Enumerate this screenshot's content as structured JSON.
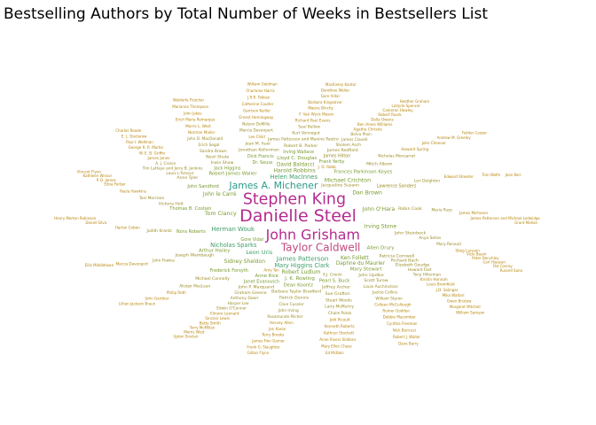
{
  "chart_data": {
    "type": "wordcloud",
    "title": "Bestselling Authors by Total Number of Weeks in Bestsellers List",
    "color_scale": [
      "#b8860b",
      "#9a8a22",
      "#7a9a2e",
      "#3e9e6a",
      "#2a9a8a",
      "#c04a7e",
      "#b52b8f"
    ],
    "words": [
      {
        "text": "Danielle Steel",
        "weight": 100
      },
      {
        "text": "Stephen King",
        "weight": 96
      },
      {
        "text": "John Grisham",
        "weight": 92
      },
      {
        "text": "Taylor Caldwell",
        "weight": 80
      },
      {
        "text": "James A. Michener",
        "weight": 76
      },
      {
        "text": "James Patterson",
        "weight": 60
      },
      {
        "text": "Herman Wouk",
        "weight": 58
      },
      {
        "text": "Helen MacInnes",
        "weight": 57
      },
      {
        "text": "Mary Higgins Clark",
        "weight": 56
      },
      {
        "text": "Nicholas Sparks",
        "weight": 56
      },
      {
        "text": "Leon Uris",
        "weight": 55
      },
      {
        "text": "Harold Robbins",
        "weight": 54
      },
      {
        "text": "Michael Crichton",
        "weight": 54
      },
      {
        "text": "Tom Clancy",
        "weight": 54
      },
      {
        "text": "Dan Brown",
        "weight": 53
      },
      {
        "text": "John O'Hara",
        "weight": 53
      },
      {
        "text": "Irving Stone",
        "weight": 52
      },
      {
        "text": "Ken Follett",
        "weight": 52
      },
      {
        "text": "Robert Ludlum",
        "weight": 52
      },
      {
        "text": "Sidney Sheldon",
        "weight": 52
      },
      {
        "text": "John le Carré",
        "weight": 51
      },
      {
        "text": "David Baldacci",
        "weight": 50
      },
      {
        "text": "Daphne du Maurier",
        "weight": 50
      },
      {
        "text": "Allen Drury",
        "weight": 48
      },
      {
        "text": "J. K. Rowling",
        "weight": 48
      },
      {
        "text": "Arthur Hailey",
        "weight": 47
      },
      {
        "text": "Robert James Waller",
        "weight": 47
      },
      {
        "text": "Lloyd C. Douglas",
        "weight": 47
      },
      {
        "text": "Frances Parkinson Keyes",
        "weight": 47
      },
      {
        "text": "Mary Stewart",
        "weight": 47
      },
      {
        "text": "Pearl S. Buck",
        "weight": 46
      },
      {
        "text": "Dean Koontz",
        "weight": 46
      },
      {
        "text": "Anne Rice",
        "weight": 46
      },
      {
        "text": "Janet Evanovich",
        "weight": 44
      },
      {
        "text": "Frederick Forsyth",
        "weight": 44
      },
      {
        "text": "Nora Roberts",
        "weight": 44
      },
      {
        "text": "Thomas B. Costain",
        "weight": 44
      },
      {
        "text": "John Sandford",
        "weight": 44
      },
      {
        "text": "Jack Higgins",
        "weight": 43
      },
      {
        "text": "Dick Francis",
        "weight": 43
      },
      {
        "text": "Frank Yerby",
        "weight": 43
      },
      {
        "text": "Gore Vidal",
        "weight": 43
      },
      {
        "text": "Irving Wallace",
        "weight": 43
      },
      {
        "text": "Dr. Seuss",
        "weight": 43
      },
      {
        "text": "Lawrence Sanders",
        "weight": 42
      },
      {
        "text": "James Hilton",
        "weight": 42
      },
      {
        "text": "Robin Cook",
        "weight": 41
      },
      {
        "text": "John Steinbeck",
        "weight": 41
      },
      {
        "text": "Patricia Cornwell",
        "weight": 41
      },
      {
        "text": "John Updike",
        "weight": 41
      },
      {
        "text": "Barbara Taylor Bradford",
        "weight": 40
      },
      {
        "text": "Jacqueline Susann",
        "weight": 40
      },
      {
        "text": "Jeffrey Archer",
        "weight": 40
      },
      {
        "text": "John P. Marquand",
        "weight": 40
      },
      {
        "text": "Joseph Wambaugh",
        "weight": 40
      },
      {
        "text": "Irwin Shaw",
        "weight": 40
      },
      {
        "text": "Jonathan Kellerman",
        "weight": 40
      },
      {
        "text": "Robert B. Parker",
        "weight": 40
      },
      {
        "text": "James Redfield",
        "weight": 40
      },
      {
        "text": "Mitch Albom",
        "weight": 40
      },
      {
        "text": "Richard Bach",
        "weight": 40
      },
      {
        "text": "Scott Turow",
        "weight": 40
      },
      {
        "text": "Sue Grafton",
        "weight": 40
      },
      {
        "text": "Patrick Dennis",
        "weight": 39
      },
      {
        "text": "Graham Greene",
        "weight": 38
      },
      {
        "text": "Michael Connelly",
        "weight": 38
      },
      {
        "text": "Victoria Holt",
        "weight": 38
      },
      {
        "text": "Anne Tyler",
        "weight": 38
      },
      {
        "text": "Nevil Shute",
        "weight": 38
      },
      {
        "text": "Jean M. Auel",
        "weight": 38
      },
      {
        "text": "James Patterson and Maxine Paetro",
        "weight": 37
      },
      {
        "text": "Sholem Asch",
        "weight": 36
      },
      {
        "text": "Anya Seton",
        "weight": 36
      },
      {
        "text": "Elizabeth Goudge",
        "weight": 36
      },
      {
        "text": "Louis Auchincloss",
        "weight": 36
      },
      {
        "text": "Stuart Woods",
        "weight": 36
      },
      {
        "text": "Clive Cussler",
        "weight": 36
      },
      {
        "text": "Anthony Doerr",
        "weight": 36
      },
      {
        "text": "Judith Krantz",
        "weight": 36
      },
      {
        "text": "Louis L'Amour",
        "weight": 36
      },
      {
        "text": "Sandra Brown",
        "weight": 35
      },
      {
        "text": "Kurt Vonnegut",
        "weight": 35
      },
      {
        "text": "Nicholas Monsarrat",
        "weight": 35
      },
      {
        "text": "James Clavell",
        "weight": 35
      },
      {
        "text": "Len Deighton",
        "weight": 35
      },
      {
        "text": "Mario Puzo",
        "weight": 34
      },
      {
        "text": "Howard Fast",
        "weight": 34
      },
      {
        "text": "Alistair MacLean",
        "weight": 33
      },
      {
        "text": "Jackie Collins",
        "weight": 34
      },
      {
        "text": "Larry McMurtry",
        "weight": 34
      },
      {
        "text": "John Irving",
        "weight": 34
      },
      {
        "text": "Harper Lee",
        "weight": 34
      },
      {
        "text": "John Fowles",
        "weight": 33
      },
      {
        "text": "Toni Morrison",
        "weight": 33
      },
      {
        "text": "Tim LaHaye and Jerry B. Jenkins",
        "weight": 33
      },
      {
        "text": "Erich Segal",
        "weight": 33
      },
      {
        "text": "Marcia Davenport",
        "weight": 33
      },
      {
        "text": "Saul Bellow",
        "weight": 33
      },
      {
        "text": "Belva Plain",
        "weight": 33
      },
      {
        "text": "Mary Renault",
        "weight": 32
      },
      {
        "text": "Tony Hillerman",
        "weight": 32
      },
      {
        "text": "William Styron",
        "weight": 32
      },
      {
        "text": "Chaim Potok",
        "weight": 32
      },
      {
        "text": "Rosamunde Pilcher",
        "weight": 32
      },
      {
        "text": "Richard Paul Evans",
        "weight": 31
      },
      {
        "text": "Agatha Christie",
        "weight": 31
      },
      {
        "text": "Edwin O'Connor",
        "weight": 32
      },
      {
        "text": "A. J. Cronin",
        "weight": 32
      },
      {
        "text": "A.J. Cronin",
        "weight": 32
      },
      {
        "text": "John D. MacDonald",
        "weight": 32
      },
      {
        "text": "Nelson DeMille",
        "weight": 32
      },
      {
        "text": "Howard Spring",
        "weight": 31
      },
      {
        "text": "Kristin Hannah",
        "weight": 31
      },
      {
        "text": "Colleen McCullough",
        "weight": 31
      },
      {
        "text": "Jodi Picoult",
        "weight": 31
      },
      {
        "text": "Hervey Allen",
        "weight": 31
      },
      {
        "text": "Elmore Leonard",
        "weight": 30
      },
      {
        "text": "Philip Roth",
        "weight": 30
      },
      {
        "text": "Harlan Coben",
        "weight": 30
      },
      {
        "text": "Paula Hawkins",
        "weight": 30
      },
      {
        "text": "J. D. Robb",
        "weight": 30
      },
      {
        "text": "James Jones",
        "weight": 30
      },
      {
        "text": "Norman Mailer",
        "weight": 30
      },
      {
        "text": "Ernest Hemingway",
        "weight": 30
      },
      {
        "text": "F. Van Wyck Mason",
        "weight": 30
      },
      {
        "text": "Ben Ames Williams",
        "weight": 30
      },
      {
        "text": "Edward Streeter",
        "weight": 28
      },
      {
        "text": "James Michener",
        "weight": 28
      },
      {
        "text": "Stieg Larsson",
        "weight": 28
      },
      {
        "text": "Louis Bromfield",
        "weight": 28
      },
      {
        "text": "Rumer Godden",
        "weight": 28
      },
      {
        "text": "Kenneth Roberts",
        "weight": 28
      },
      {
        "text": "Jan Karon",
        "weight": 28
      },
      {
        "text": "Sinclair Lewis",
        "weight": 28
      },
      {
        "text": "Marcia Davenport",
        "weight": 28
      },
      {
        "text": "W. E. B. Griffin",
        "weight": 28
      },
      {
        "text": "Morris L. West",
        "weight": 28
      },
      {
        "text": "Garrison Keillor",
        "weight": 28
      },
      {
        "text": "Maeve Binchy",
        "weight": 28
      },
      {
        "text": "Della Owens",
        "weight": 28
      },
      {
        "text": "John Cheever",
        "weight": 28
      },
      {
        "text": "J.D. Salinger",
        "weight": 28
      },
      {
        "text": "Debbie Macomber",
        "weight": 27
      },
      {
        "text": "Kathryn Stockett",
        "weight": 27
      },
      {
        "text": "George R. R. Martin",
        "weight": 26
      },
      {
        "text": "Erich Maria Remarque",
        "weight": 26
      },
      {
        "text": "Terry Brooks",
        "weight": 27
      },
      {
        "text": "Betty Smith",
        "weight": 27
      },
      {
        "text": "John Gardner",
        "weight": 27
      },
      {
        "text": "Edna Ferber",
        "weight": 27
      },
      {
        "text": "Catherine Coulter",
        "weight": 26
      },
      {
        "text": "Barbara Kingsolver",
        "weight": 26
      },
      {
        "text": "Robert Ruark",
        "weight": 26
      },
      {
        "text": "Peter Benchley",
        "weight": 26
      },
      {
        "text": "Mika Waltari",
        "weight": 26
      },
      {
        "text": "Cynthia Freeman",
        "weight": 26
      },
      {
        "text": "Anne Rivers Siddons",
        "weight": 25
      },
      {
        "text": "James Finn Garner",
        "weight": 25
      },
      {
        "text": "Terry McMillan",
        "weight": 25
      },
      {
        "text": "Daniel Silva",
        "weight": 25
      },
      {
        "text": "Lee Child",
        "weight": 25
      },
      {
        "text": "P. D. James",
        "weight": 25
      },
      {
        "text": "Paul I. Wellman",
        "weight": 25
      },
      {
        "text": "Amy Tan",
        "weight": 25
      },
      {
        "text": "John Jakes",
        "weight": 25
      },
      {
        "text": "J.R.R. Tolkien",
        "weight": 25
      },
      {
        "text": "Gore Vidal",
        "weight": 25
      },
      {
        "text": "Cameron Hawley",
        "weight": 24
      },
      {
        "text": "Andrew M. Greeley",
        "weight": 24
      },
      {
        "text": "James Patterson and Michael Ledwidge",
        "weight": 24
      },
      {
        "text": "Vicki Baum",
        "weight": 22
      },
      {
        "text": "Tom Wolfe",
        "weight": 23
      },
      {
        "text": "Carl Hiaasen",
        "weight": 23
      },
      {
        "text": "Gwen Bristow",
        "weight": 23
      },
      {
        "text": "Nick Barrucci",
        "weight": 22
      },
      {
        "text": "Mary Ellen Chase",
        "weight": 22
      },
      {
        "text": "Frank G. Slaughter",
        "weight": 22
      },
      {
        "text": "Morris West",
        "weight": 22
      },
      {
        "text": "Lillian Jackson Braun",
        "weight": 22
      },
      {
        "text": "Ellis Middletown",
        "weight": 21
      },
      {
        "text": "Kathleen Winsor",
        "weight": 21
      },
      {
        "text": "E. L. Doctorow",
        "weight": 21
      },
      {
        "text": "Henry Morton Robinson",
        "weight": 20
      },
      {
        "text": "Marianne Thompson",
        "weight": 21
      },
      {
        "text": "Charlaine Harris",
        "weight": 21
      },
      {
        "text": "Dorothee Weiler",
        "weight": 21
      },
      {
        "text": "LaVyrle Spencer",
        "weight": 21
      },
      {
        "text": "Pat Conroy",
        "weight": 21
      },
      {
        "text": "Margaret Mitchell",
        "weight": 21
      },
      {
        "text": "Robert J. Waller",
        "weight": 21
      },
      {
        "text": "Ed McBain",
        "weight": 21
      },
      {
        "text": "Gillian Flynn",
        "weight": 21
      },
      {
        "text": "Upton Sinclair",
        "weight": 21
      },
      {
        "text": "Vincent Flynn",
        "weight": 20
      },
      {
        "text": "Charles Reade",
        "weight": 20
      },
      {
        "text": "Waldorfe Fletcher",
        "weight": 20
      },
      {
        "text": "William Goldman",
        "weight": 20
      },
      {
        "text": "MacKinley Kantor",
        "weight": 20
      },
      {
        "text": "Heather Graham",
        "weight": 20
      },
      {
        "text": "Feilder Carper",
        "weight": 20
      },
      {
        "text": "Jean Kerr",
        "weight": 20
      },
      {
        "text": "Grant Mahan",
        "weight": 20
      },
      {
        "text": "Russell Sano",
        "weight": 20
      },
      {
        "text": "William Saroyan",
        "weight": 20
      },
      {
        "text": "Dave Barry",
        "weight": 20
      }
    ]
  }
}
